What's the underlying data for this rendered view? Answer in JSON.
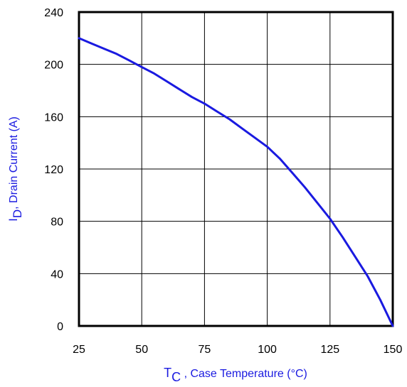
{
  "chart_data": {
    "type": "line",
    "xlabel": {
      "main": "T",
      "sub": "C",
      "rest": " , Case Temperature (°C)"
    },
    "ylabel": {
      "main": "I",
      "sub": "D",
      "rest": ",  Drain Current (A)"
    },
    "xlim": [
      25,
      150
    ],
    "ylim": [
      0,
      240
    ],
    "x_ticks": [
      "25",
      "50",
      "75",
      "100",
      "125",
      "150"
    ],
    "y_ticks": [
      "0",
      "40",
      "80",
      "120",
      "160",
      "200",
      "240"
    ],
    "grid": true,
    "series": [
      {
        "x": [
          25,
          30,
          35,
          40,
          45,
          50,
          55,
          60,
          65,
          70,
          75,
          80,
          85,
          90,
          95,
          100,
          105,
          110,
          115,
          120,
          125,
          130,
          135,
          140,
          145,
          150
        ],
        "y": [
          220,
          216,
          212,
          208,
          203,
          198,
          193,
          187,
          181,
          175,
          170,
          164,
          158,
          151,
          144,
          137,
          128,
          117,
          106,
          94,
          82,
          68,
          53,
          38,
          20,
          0
        ],
        "color": "#1a1ae0"
      }
    ]
  },
  "colors": {
    "curve": "#1a1ae0",
    "labels": "#1a1ae0",
    "axes": "#000000"
  }
}
